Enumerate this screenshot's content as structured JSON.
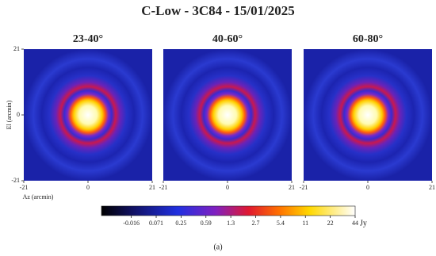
{
  "title": "C-Low - 3C84 - 15/01/2025",
  "chart_data": [
    {
      "type": "image",
      "title": "23-40°",
      "xlim": [
        -21,
        21
      ],
      "xticks": [
        -21,
        0,
        21
      ],
      "ylim": [
        -21,
        21
      ],
      "yticks": [
        -21,
        0,
        21
      ],
      "xlabel": "Az (arcmin)",
      "ylabel": "El (arcmin)"
    },
    {
      "type": "image",
      "title": "40-60°",
      "xlim": [
        -21,
        21
      ],
      "xticks": [
        -21,
        0,
        21
      ]
    },
    {
      "type": "image",
      "title": "60-80°",
      "xlim": [
        -21,
        21
      ],
      "xticks": [
        -21,
        0,
        21
      ]
    }
  ],
  "colorbar": {
    "ticks": [
      -0.016,
      0.071,
      0.25,
      0.59,
      1.3,
      2.7,
      5.4,
      11,
      22,
      44
    ],
    "label": "Jy"
  },
  "caption": "(a)"
}
